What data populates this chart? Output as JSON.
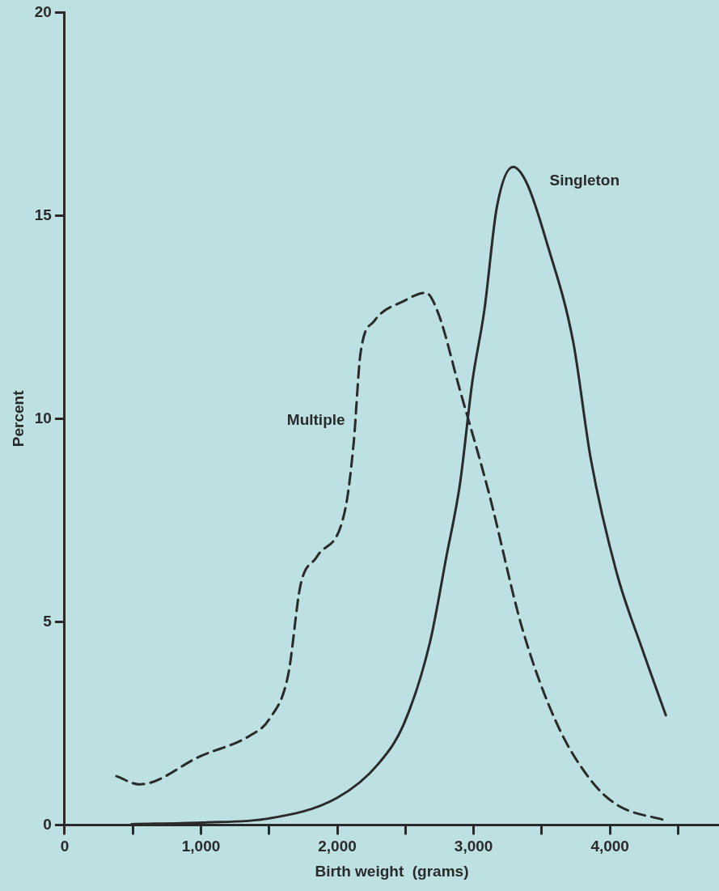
{
  "chart_data": {
    "type": "line",
    "xlabel": "Birth weight  (grams)",
    "ylabel": "Percent",
    "xlim": [
      0,
      4800
    ],
    "ylim": [
      0,
      20
    ],
    "xticks": [
      {
        "value": 0,
        "label": "0"
      },
      {
        "value": 500,
        "label": null
      },
      {
        "value": 1000,
        "label": "1,000"
      },
      {
        "value": 1500,
        "label": null
      },
      {
        "value": 2000,
        "label": "2,000"
      },
      {
        "value": 2500,
        "label": null
      },
      {
        "value": 3000,
        "label": "3,000"
      },
      {
        "value": 3500,
        "label": null
      },
      {
        "value": 4000,
        "label": "4,000"
      },
      {
        "value": 4500,
        "label": null
      }
    ],
    "yticks": [
      0,
      5,
      10,
      15,
      20
    ],
    "grid": false,
    "legend": false,
    "marker": "none",
    "series": [
      {
        "name": "Singleton",
        "color": "#2a2a2a",
        "line_style": "solid",
        "x": [
          490,
          1000,
          1500,
          2000,
          2300,
          2490,
          2680,
          2800,
          2900,
          2990,
          3080,
          3170,
          3290,
          3390,
          3540,
          3730,
          3860,
          4050,
          4240,
          4410
        ],
        "values": [
          0.02,
          0.06,
          0.16,
          0.67,
          1.5,
          2.5,
          4.5,
          6.6,
          8.4,
          10.9,
          12.7,
          15.2,
          16.2,
          15.8,
          14.3,
          11.9,
          9.0,
          6.2,
          4.3,
          2.7
        ]
      },
      {
        "name": "Multiple",
        "color": "#2a2a2a",
        "line_style": "dashed",
        "x": [
          380,
          550,
          1000,
          1360,
          1500,
          1640,
          1730,
          1850,
          2060,
          2120,
          2170,
          2270,
          2490,
          2650,
          2740,
          2900,
          3110,
          3360,
          3610,
          3860,
          4050,
          4420
        ],
        "values": [
          1.2,
          1.0,
          1.7,
          2.2,
          2.6,
          3.7,
          5.9,
          6.6,
          7.8,
          9.4,
          11.6,
          12.4,
          12.9,
          13.1,
          12.6,
          10.7,
          8.2,
          4.8,
          2.5,
          1.1,
          0.5,
          0.1
        ]
      }
    ]
  }
}
